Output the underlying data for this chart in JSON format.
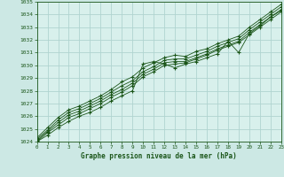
{
  "title": "Graphe pression niveau de la mer (hPa)",
  "bg_color": "#cce8e4",
  "plot_bg_color": "#d8f0ec",
  "grid_color": "#b0d4d0",
  "line_color": "#1a5518",
  "marker_color": "#1a5518",
  "text_color": "#1a5518",
  "xlim": [
    0,
    23
  ],
  "ylim": [
    1024,
    1035
  ],
  "xticks": [
    0,
    1,
    2,
    3,
    4,
    5,
    6,
    7,
    8,
    9,
    10,
    11,
    12,
    13,
    14,
    15,
    16,
    17,
    18,
    19,
    20,
    21,
    22,
    23
  ],
  "yticks": [
    1024,
    1025,
    1026,
    1027,
    1028,
    1029,
    1030,
    1031,
    1032,
    1033,
    1034,
    1035
  ],
  "series": [
    [
      1024.0,
      1024.5,
      1025.1,
      1025.6,
      1026.0,
      1026.3,
      1026.7,
      1027.2,
      1027.6,
      1028.0,
      1030.1,
      1030.3,
      1030.1,
      1029.8,
      1030.1,
      1030.3,
      1030.6,
      1030.9,
      1031.9,
      1031.0,
      1032.5,
      1033.1,
      1033.8,
      1034.4
    ],
    [
      1024.0,
      1024.7,
      1025.3,
      1025.9,
      1026.2,
      1026.6,
      1027.0,
      1027.5,
      1027.9,
      1028.4,
      1029.1,
      1029.5,
      1030.0,
      1030.1,
      1030.2,
      1030.5,
      1030.8,
      1031.2,
      1031.5,
      1031.8,
      1032.4,
      1033.0,
      1033.6,
      1034.2
    ],
    [
      1024.1,
      1024.8,
      1025.5,
      1026.1,
      1026.4,
      1026.8,
      1027.2,
      1027.7,
      1028.1,
      1028.6,
      1029.3,
      1029.7,
      1030.2,
      1030.3,
      1030.3,
      1030.6,
      1030.9,
      1031.3,
      1031.6,
      1031.9,
      1032.6,
      1033.2,
      1033.8,
      1034.3
    ],
    [
      1024.2,
      1024.9,
      1025.7,
      1026.3,
      1026.6,
      1027.0,
      1027.4,
      1027.9,
      1028.4,
      1028.8,
      1029.5,
      1029.9,
      1030.4,
      1030.5,
      1030.5,
      1030.8,
      1031.1,
      1031.5,
      1031.8,
      1032.1,
      1032.8,
      1033.4,
      1034.0,
      1034.6
    ],
    [
      1024.3,
      1025.1,
      1025.9,
      1026.5,
      1026.8,
      1027.2,
      1027.6,
      1028.1,
      1028.7,
      1029.1,
      1029.8,
      1030.2,
      1030.6,
      1030.8,
      1030.7,
      1031.1,
      1031.3,
      1031.7,
      1032.0,
      1032.3,
      1033.0,
      1033.6,
      1034.2,
      1034.8
    ]
  ]
}
